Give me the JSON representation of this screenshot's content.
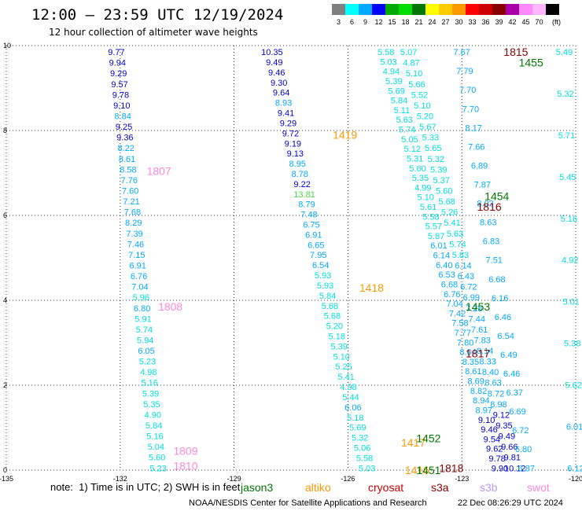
{
  "header": {
    "title": "12:00 — 23:59 UTC 12/19/2024",
    "subtitle": "12 hour collection of altimeter wave heights"
  },
  "colorbar": {
    "colors": [
      "#7f7f7f",
      "#00ffff",
      "#00aaff",
      "#0000ff",
      "#00aa00",
      "#00dd00",
      "#007700",
      "#ffff00",
      "#ffcc00",
      "#ff9900",
      "#ff0000",
      "#cc0000",
      "#880000",
      "#aa00aa",
      "#ff88ff",
      "#ffb6ff",
      "#000000"
    ],
    "labels": [
      "3",
      "6",
      "9",
      "12",
      "15",
      "18",
      "21",
      "24",
      "27",
      "30",
      "33",
      "36",
      "39",
      "42",
      "45",
      "70",
      "(ft)"
    ]
  },
  "chart_data": {
    "type": "scatter",
    "xlim": [
      -135,
      -120
    ],
    "ylim": [
      0,
      10
    ],
    "x_ticks": [
      "-135",
      "-132",
      "-129",
      "-126",
      "-123",
      "-120"
    ],
    "y_ticks": [
      "0",
      "2",
      "4",
      "6",
      "8",
      "10"
    ],
    "grid": true,
    "tracks": [
      {
        "x0": -132.1,
        "x1": -131.0,
        "values": [
          "9.77",
          "9.94",
          "9.29",
          "9.57",
          "9.78",
          "9.10",
          "8.84",
          "9.25",
          "9.36",
          "8.22",
          "8.61",
          "8.58",
          "7.76",
          "7.60",
          "7.21",
          "7.68",
          "8.29",
          "7.39",
          "7.46",
          "7.15",
          "6.91",
          "6.76",
          "7.04",
          "5.96",
          "6.80",
          "5.91",
          "5.74",
          "5.94",
          "6.05",
          "5.23",
          "4.98",
          "5.16",
          "5.39",
          "5.35",
          "4.90",
          "5.84",
          "5.16",
          "5.04",
          "5.60",
          "5.23"
        ]
      },
      {
        "x0": -128.0,
        "x1": -125.5,
        "values": [
          "10.35",
          "9.49",
          "9.46",
          "9.30",
          "9.64",
          "8.93",
          "9.41",
          "9.29",
          "9.72",
          "9.19",
          "9.13",
          "8.95",
          "8.78",
          "9.22",
          "13.81",
          "8.79",
          "7.48",
          "6.75",
          "6.91",
          "6.65",
          "7.95",
          "6.54",
          "5.93",
          "5.93",
          "5.84",
          "5.68",
          "5.68",
          "5.20",
          "5.18",
          "5.39",
          "5.10",
          "5.25",
          "5.41",
          "4.98",
          "5.44",
          "6.06",
          "5.18",
          "5.69",
          "5.32",
          "5.06",
          "5.58",
          "5.03"
        ]
      },
      {
        "x0": -125.0,
        "x1": -122.0,
        "values": [
          "5.58",
          "5.03",
          "4.94",
          "5.39",
          "5.69",
          "5.84",
          "5.11",
          "5.63",
          "5.74",
          "5.05",
          "5.12",
          "5.31",
          "5.60",
          "5.35",
          "4.99",
          "5.10",
          "5.61",
          "5.58",
          "5.57",
          "5.87",
          "6.01",
          "6.14",
          "6.40",
          "6.53",
          "6.68",
          "6.76",
          "7.04",
          "7.42",
          "7.58",
          "7.77",
          "7.80",
          "8.04",
          "8.35",
          "8.61",
          "8.69",
          "8.82",
          "8.94",
          "8.97",
          "9.10",
          "9.46",
          "9.54",
          "9.62",
          "9.78",
          "9.90"
        ]
      },
      {
        "x0": -124.4,
        "x1": -121.6,
        "values": [
          "5.07",
          "4.87",
          "5.10",
          "5.66",
          "5.52",
          "5.10",
          "5.20",
          "5.67",
          "5.33",
          "5.65",
          "5.32",
          "5.39",
          "5.37",
          "5.60",
          "5.68",
          "5.26",
          "5.41",
          "5.63",
          "5.74",
          "5.83",
          "6.14",
          "6.43",
          "6.72",
          "6.99",
          "7.28",
          "7.44",
          "7.61",
          "7.83",
          "8.14",
          "8.33",
          "8.40",
          "8.63",
          "8.72",
          "8.98",
          "9.12",
          "9.35",
          "9.49",
          "9.66",
          "9.81",
          "10.12"
        ]
      },
      {
        "x0": -123.0,
        "x1": -121.3,
        "values": [
          "7.67",
          "7.79",
          "7.70",
          "7.70",
          "8.17",
          "7.66",
          "6.89",
          "7.87",
          "8.03",
          "8.63",
          "6.83",
          "7.51",
          "6.68",
          "6.16",
          "6.46",
          "6.54",
          "6.49",
          "6.46",
          "6.37",
          "6.69",
          "6.72",
          "6.80",
          "6.87"
        ]
      },
      {
        "x0": -120.3,
        "x1": -120.0,
        "values": [
          "5.49",
          "5.32",
          "5.71",
          "5.45",
          "5.16",
          "4.92",
          "5.01",
          "5.38",
          "5.62",
          "6.01",
          "6.12"
        ]
      }
    ],
    "pass_labels": [
      {
        "text": "1807",
        "x": -131.3,
        "y": 7.05,
        "color": "#ff88dd"
      },
      {
        "text": "1808",
        "x": -131.0,
        "y": 3.85,
        "color": "#ff88dd"
      },
      {
        "text": "1809",
        "x": -130.6,
        "y": 0.45,
        "color": "#ff88dd"
      },
      {
        "text": "1810",
        "x": -130.6,
        "y": 0.1,
        "color": "#ff88dd"
      },
      {
        "text": "1419",
        "x": -126.4,
        "y": 7.9,
        "color": "#ff9900"
      },
      {
        "text": "1418",
        "x": -125.7,
        "y": 4.3,
        "color": "#ff9900"
      },
      {
        "text": "1417",
        "x": -124.6,
        "y": 0.65,
        "color": "#ff9900"
      },
      {
        "text": "1416",
        "x": -124.5,
        "y": 0.0,
        "color": "#ff9900"
      },
      {
        "text": "1451",
        "x": -124.2,
        "y": 0.0,
        "color": "#007700"
      },
      {
        "text": "1452",
        "x": -124.2,
        "y": 0.75,
        "color": "#007700"
      },
      {
        "text": "1453",
        "x": -122.9,
        "y": 3.85,
        "color": "#007700"
      },
      {
        "text": "1454",
        "x": -122.4,
        "y": 6.45,
        "color": "#007700"
      },
      {
        "text": "1455",
        "x": -121.5,
        "y": 9.6,
        "color": "#007700"
      },
      {
        "text": "1815",
        "x": -121.9,
        "y": 9.85,
        "color": "#880000"
      },
      {
        "text": "1816",
        "x": -122.6,
        "y": 6.2,
        "color": "#880000"
      },
      {
        "text": "1817",
        "x": -122.9,
        "y": 2.75,
        "color": "#880000"
      },
      {
        "text": "1818",
        "x": -123.6,
        "y": 0.05,
        "color": "#880000"
      }
    ]
  },
  "footer": {
    "note": "note:  1) Time is in UTC; 2) SWH is in feet",
    "satellites": [
      {
        "name": "jason3",
        "color": "#007700"
      },
      {
        "name": "altiko",
        "color": "#ff9900"
      },
      {
        "name": "cryosat",
        "color": "#cc0000"
      },
      {
        "name": "s3a",
        "color": "#880000"
      },
      {
        "name": "s3b",
        "color": "#bb99ee"
      },
      {
        "name": "swot",
        "color": "#ff88dd"
      }
    ],
    "credit": "NOAA/NESDIS Center for Satellite Applications and Research",
    "timestamp": "22 Dec 08:26:29 UTC 2024"
  }
}
